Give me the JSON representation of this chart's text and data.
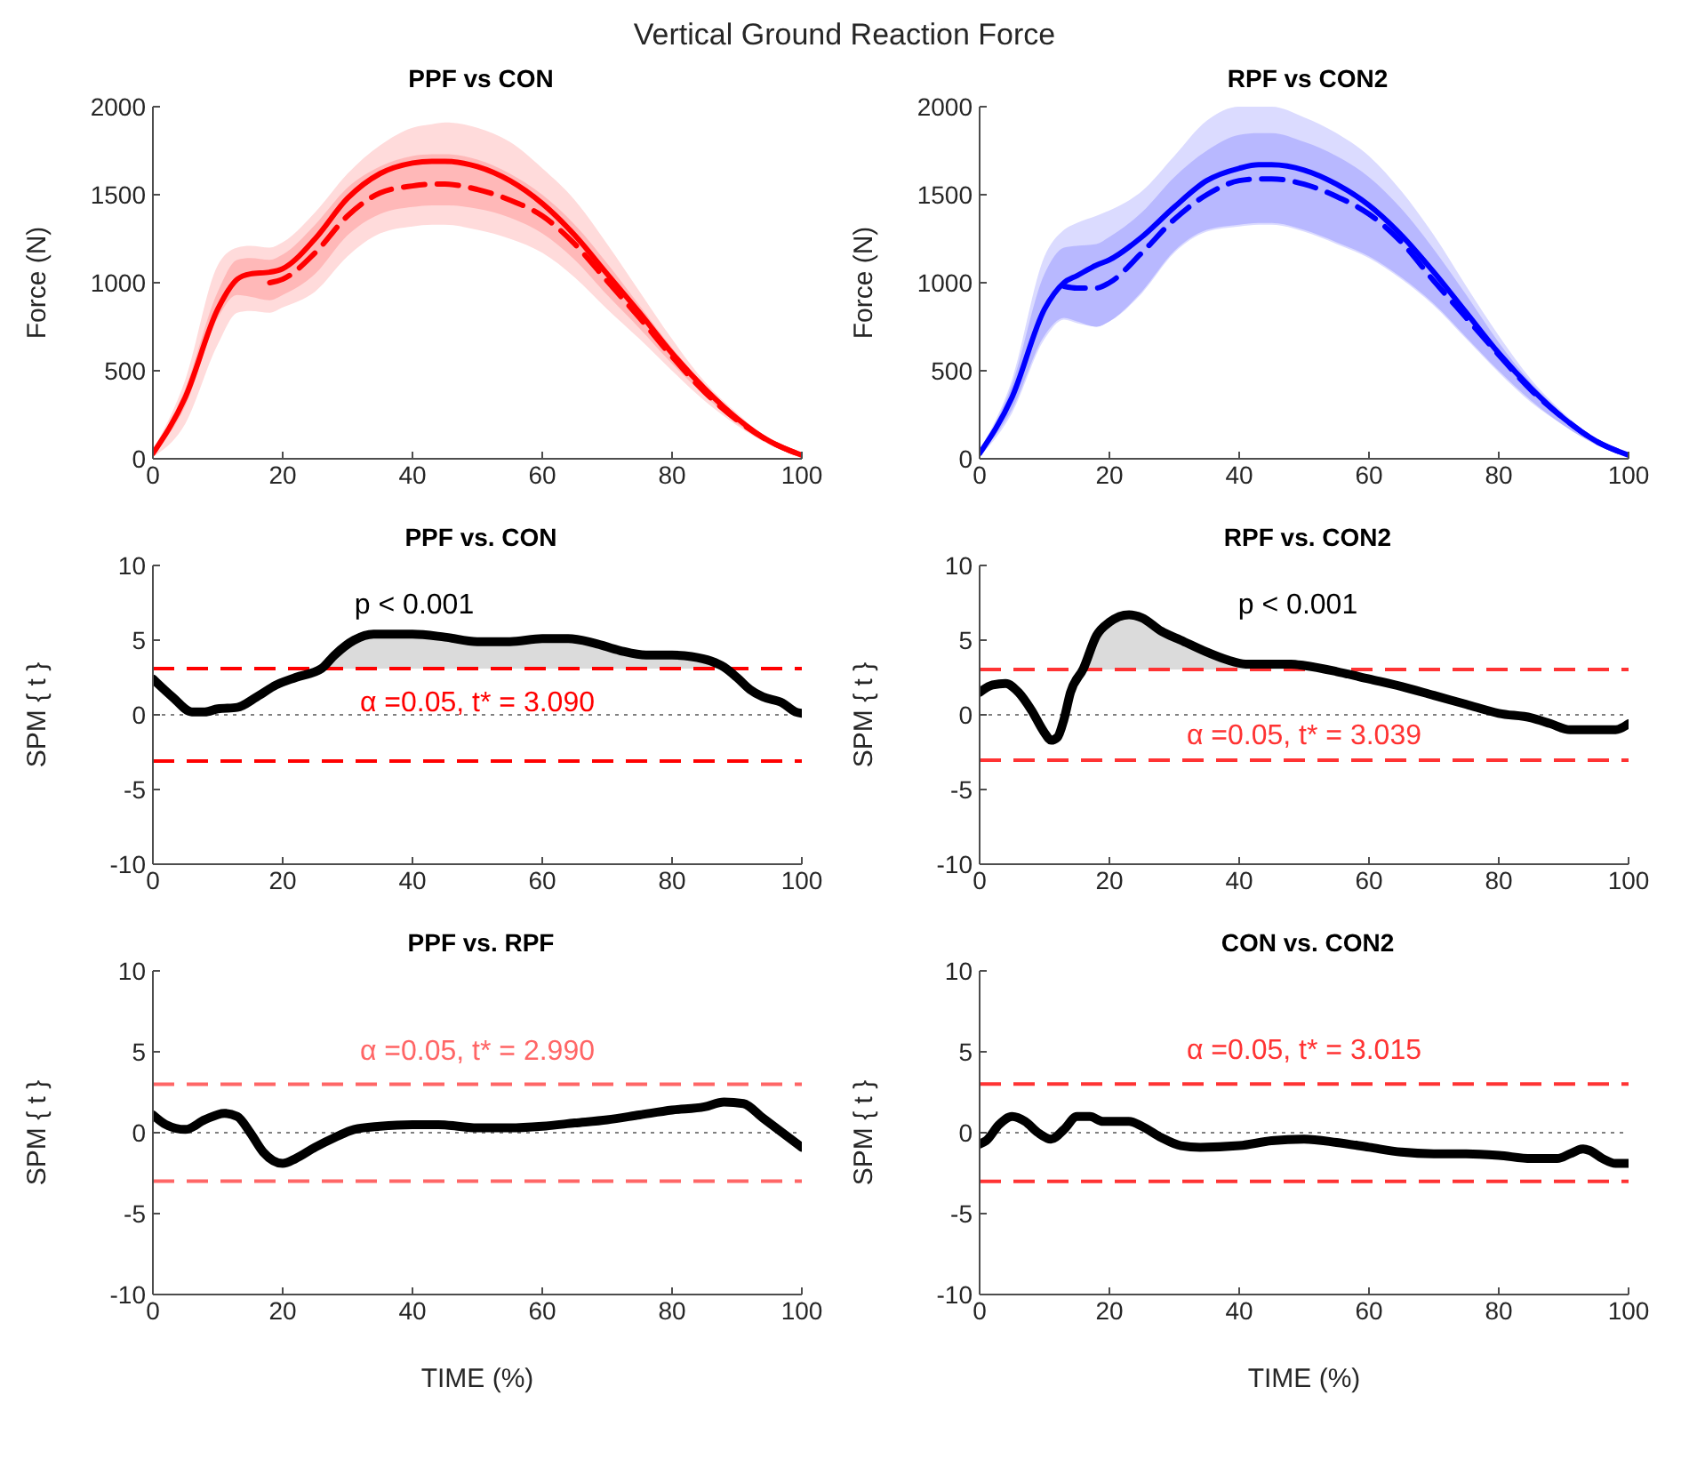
{
  "chart_data": [
    {
      "type": "line",
      "title": "PPF vs CON",
      "ylabel": "Force (N)",
      "annotations": [
        "Vertical Ground Reaction Force"
      ],
      "xlim": [
        0,
        100
      ],
      "xticks": [
        0,
        20,
        40,
        60,
        80,
        100
      ],
      "ylim": [
        0,
        2000
      ],
      "yticks": [
        0,
        500,
        1000,
        1500,
        2000
      ],
      "series": [
        {
          "color": "#ff0000",
          "line_style": "solid",
          "x": [
            0,
            5,
            10,
            13,
            15,
            18,
            20,
            25,
            30,
            35,
            40,
            43,
            45,
            50,
            55,
            60,
            65,
            70,
            75,
            80,
            85,
            90,
            95,
            100
          ],
          "values": [
            30,
            350,
            850,
            1020,
            1050,
            1060,
            1080,
            1250,
            1480,
            1620,
            1680,
            1690,
            1690,
            1660,
            1580,
            1450,
            1270,
            1050,
            830,
            600,
            400,
            230,
            100,
            20
          ],
          "lower": [
            10,
            200,
            650,
            830,
            840,
            830,
            860,
            950,
            1150,
            1280,
            1320,
            1330,
            1330,
            1300,
            1250,
            1170,
            1030,
            850,
            680,
            500,
            330,
            190,
            80,
            10
          ],
          "upper": [
            50,
            450,
            1100,
            1200,
            1210,
            1200,
            1230,
            1400,
            1620,
            1780,
            1880,
            1900,
            1910,
            1880,
            1800,
            1650,
            1470,
            1220,
            950,
            680,
            440,
            260,
            110,
            30
          ]
        },
        {
          "color": "#ff0000",
          "line_style": "dashed",
          "x": [
            0,
            5,
            10,
            13,
            15,
            18,
            20,
            25,
            30,
            35,
            40,
            43,
            45,
            50,
            55,
            60,
            65,
            70,
            75,
            80,
            85,
            90,
            95,
            100
          ],
          "values": [
            null,
            null,
            null,
            null,
            null,
            1000,
            1020,
            1170,
            1380,
            1510,
            1550,
            1560,
            1560,
            1530,
            1470,
            1380,
            1220,
            1010,
            800,
            580,
            380,
            220,
            100,
            20
          ],
          "lower": [
            20,
            300,
            800,
            930,
            920,
            900,
            930,
            1050,
            1270,
            1390,
            1430,
            1440,
            1440,
            1420,
            1370,
            1280,
            1130,
            930,
            740,
            540,
            360,
            200,
            90,
            20
          ],
          "upper": [
            40,
            400,
            950,
            1130,
            1140,
            1130,
            1160,
            1330,
            1540,
            1660,
            1720,
            1730,
            1730,
            1700,
            1620,
            1500,
            1330,
            1110,
            870,
            630,
            420,
            240,
            100,
            20
          ]
        }
      ]
    },
    {
      "type": "line",
      "title": "RPF vs CON2",
      "ylabel": "Force (N)",
      "xlim": [
        0,
        100
      ],
      "xticks": [
        0,
        20,
        40,
        60,
        80,
        100
      ],
      "ylim": [
        0,
        2000
      ],
      "yticks": [
        0,
        500,
        1000,
        1500,
        2000
      ],
      "series": [
        {
          "color": "#0000ff",
          "line_style": "solid",
          "x": [
            0,
            5,
            10,
            13,
            15,
            18,
            20,
            25,
            30,
            35,
            40,
            43,
            45,
            50,
            55,
            60,
            65,
            70,
            75,
            80,
            85,
            90,
            95,
            100
          ],
          "values": [
            30,
            350,
            850,
            1000,
            1040,
            1100,
            1130,
            1260,
            1430,
            1580,
            1650,
            1670,
            1670,
            1640,
            1560,
            1440,
            1270,
            1060,
            830,
            600,
            400,
            230,
            100,
            20
          ],
          "lower": [
            10,
            260,
            680,
            790,
            770,
            750,
            780,
            940,
            1170,
            1290,
            1320,
            1330,
            1330,
            1290,
            1220,
            1140,
            1020,
            870,
            680,
            490,
            320,
            190,
            80,
            10
          ],
          "upper": [
            50,
            450,
            1150,
            1300,
            1340,
            1380,
            1410,
            1520,
            1720,
            1920,
            2000,
            2000,
            2000,
            1940,
            1850,
            1720,
            1520,
            1270,
            980,
            700,
            450,
            260,
            110,
            30
          ]
        },
        {
          "color": "#0000ff",
          "line_style": "dashed",
          "x": [
            0,
            5,
            10,
            13,
            15,
            18,
            20,
            25,
            30,
            35,
            40,
            43,
            45,
            50,
            55,
            60,
            65,
            70,
            75,
            80,
            85,
            90,
            95,
            100
          ],
          "values": [
            null,
            null,
            null,
            980,
            970,
            970,
            1000,
            1170,
            1360,
            1500,
            1580,
            1590,
            1590,
            1560,
            1490,
            1390,
            1230,
            1010,
            800,
            590,
            390,
            230,
            100,
            20
          ],
          "lower": [
            20,
            280,
            700,
            800,
            780,
            750,
            780,
            950,
            1180,
            1300,
            1330,
            1340,
            1340,
            1300,
            1230,
            1150,
            1030,
            880,
            690,
            500,
            330,
            190,
            80,
            10
          ],
          "upper": [
            40,
            420,
            1050,
            1200,
            1210,
            1220,
            1260,
            1400,
            1600,
            1750,
            1840,
            1850,
            1850,
            1800,
            1720,
            1600,
            1420,
            1190,
            930,
            660,
            430,
            250,
            100,
            20
          ]
        }
      ]
    },
    {
      "type": "line",
      "title": "PPF vs. CON",
      "ylabel": "SPM { t }",
      "xlim": [
        0,
        100
      ],
      "xticks": [
        0,
        20,
        40,
        60,
        80,
        100
      ],
      "ylim": [
        -10,
        10
      ],
      "yticks": [
        -10,
        -5,
        0,
        5,
        10
      ],
      "annotations": [
        "p < 0.001"
      ],
      "ref_lines": [
        {
          "axis": "y",
          "value": 3.09,
          "label": "α  =0.05,     t* = 3.090",
          "color": "#ff0000",
          "line_style": "dashed"
        },
        {
          "axis": "y",
          "value": -3.09,
          "color": "#ff0000",
          "line_style": "dashed"
        },
        {
          "axis": "y",
          "value": 0,
          "color": "#808080",
          "line_style": "dotted"
        }
      ],
      "series": [
        {
          "color": "#000000",
          "x": [
            0,
            3,
            6,
            8,
            10,
            13,
            16,
            19,
            22,
            26,
            28,
            31,
            34,
            40,
            45,
            50,
            55,
            60,
            64,
            68,
            72,
            76,
            80,
            83,
            86,
            88,
            90,
            92,
            94,
            97,
            99,
            100
          ],
          "values": [
            2.4,
            1.2,
            0.2,
            0.2,
            0.4,
            0.5,
            1.2,
            2.0,
            2.5,
            3.1,
            4.0,
            5.0,
            5.4,
            5.4,
            5.2,
            4.9,
            4.9,
            5.1,
            5.1,
            4.8,
            4.3,
            4.0,
            4.0,
            3.9,
            3.6,
            3.2,
            2.5,
            1.7,
            1.2,
            0.8,
            0.2,
            0.1
          ],
          "lower": [
            null,
            null,
            null,
            null,
            null,
            null,
            null,
            null,
            null,
            3.09,
            3.09,
            3.09,
            3.09,
            3.09,
            3.09,
            3.09,
            3.09,
            3.09,
            3.09,
            3.09,
            3.09,
            3.09,
            3.09,
            3.09,
            3.09,
            3.09,
            null,
            null,
            null,
            null,
            null,
            null
          ],
          "upper": [
            null,
            null,
            null,
            null,
            null,
            null,
            null,
            null,
            null,
            3.1,
            4.0,
            5.0,
            5.4,
            5.4,
            5.2,
            4.9,
            4.9,
            5.1,
            5.1,
            4.8,
            4.3,
            4.0,
            4.0,
            3.9,
            3.6,
            3.2,
            null,
            null,
            null,
            null,
            null,
            null
          ]
        }
      ]
    },
    {
      "type": "line",
      "title": "RPF vs. CON2",
      "ylabel": "SPM { t }",
      "xlim": [
        0,
        100
      ],
      "xticks": [
        0,
        20,
        40,
        60,
        80,
        100
      ],
      "ylim": [
        -10,
        10
      ],
      "yticks": [
        -10,
        -5,
        0,
        5,
        10
      ],
      "annotations": [
        "p < 0.001"
      ],
      "ref_lines": [
        {
          "axis": "y",
          "value": 3.039,
          "label": "α  =0.05,     t* = 3.039",
          "color": "#ff3333",
          "line_style": "dashed"
        },
        {
          "axis": "y",
          "value": -3.039,
          "color": "#ff3333",
          "line_style": "dashed"
        },
        {
          "axis": "y",
          "value": 0,
          "color": "#808080",
          "line_style": "dotted"
        }
      ],
      "series": [
        {
          "color": "#000000",
          "x": [
            0,
            2,
            4,
            6,
            8,
            10,
            11,
            12,
            13,
            14,
            16,
            18,
            20,
            23,
            25,
            28,
            31,
            35,
            38,
            41,
            45,
            48,
            50,
            55,
            60,
            65,
            70,
            75,
            80,
            85,
            88,
            91,
            95,
            98,
            100
          ],
          "values": [
            1.5,
            2.0,
            2.1,
            1.5,
            0.3,
            -1.2,
            -1.7,
            -1.5,
            -0.3,
            1.5,
            3.1,
            5.3,
            6.2,
            6.7,
            6.5,
            5.6,
            5.0,
            4.2,
            3.7,
            3.4,
            3.4,
            3.4,
            3.3,
            2.9,
            2.4,
            1.9,
            1.3,
            0.7,
            0.1,
            -0.2,
            -0.6,
            -1.0,
            -1.0,
            -1.0,
            -0.6
          ],
          "lower": [
            null,
            null,
            null,
            null,
            null,
            null,
            null,
            null,
            null,
            null,
            3.039,
            3.039,
            3.039,
            3.039,
            3.039,
            3.039,
            3.039,
            3.039,
            3.039,
            3.039,
            3.039,
            3.039,
            3.039,
            null,
            null,
            null,
            null,
            null,
            null,
            null,
            null,
            null,
            null,
            null,
            null
          ],
          "upper": [
            null,
            null,
            null,
            null,
            null,
            null,
            null,
            null,
            null,
            null,
            3.1,
            5.3,
            6.2,
            6.7,
            6.5,
            5.6,
            5.0,
            4.2,
            3.7,
            3.4,
            3.4,
            3.4,
            3.3,
            null,
            null,
            null,
            null,
            null,
            null,
            null,
            null,
            null,
            null,
            null,
            null
          ]
        }
      ]
    },
    {
      "type": "line",
      "title": "PPF vs. RPF",
      "xlabel": "TIME (%)",
      "ylabel": "SPM { t }",
      "xlim": [
        0,
        100
      ],
      "xticks": [
        0,
        20,
        40,
        60,
        80,
        100
      ],
      "ylim": [
        -10,
        10
      ],
      "yticks": [
        -10,
        -5,
        0,
        5,
        10
      ],
      "ref_lines": [
        {
          "axis": "y",
          "value": 2.99,
          "label": "α  =0.05,     t* = 2.990",
          "color": "#ff6666",
          "line_style": "dashed"
        },
        {
          "axis": "y",
          "value": -2.99,
          "color": "#ff6666",
          "line_style": "dashed"
        },
        {
          "axis": "y",
          "value": 0,
          "color": "#808080",
          "line_style": "dotted"
        }
      ],
      "series": [
        {
          "color": "#000000",
          "x": [
            0,
            2,
            5,
            8,
            11,
            13,
            15,
            17,
            20,
            22,
            25,
            28,
            31,
            35,
            40,
            44,
            50,
            55,
            60,
            65,
            70,
            75,
            80,
            85,
            88,
            91,
            94,
            97,
            100
          ],
          "values": [
            1.1,
            0.5,
            0.2,
            0.8,
            1.2,
            1.0,
            0,
            -1.2,
            -1.9,
            -1.6,
            -0.9,
            -0.3,
            0.2,
            0.4,
            0.5,
            0.5,
            0.3,
            0.3,
            0.4,
            0.6,
            0.8,
            1.1,
            1.4,
            1.6,
            1.9,
            1.8,
            0.9,
            0,
            -0.9
          ]
        }
      ]
    },
    {
      "type": "line",
      "title": "CON vs. CON2",
      "xlabel": "TIME (%)",
      "ylabel": "SPM { t }",
      "xlim": [
        0,
        100
      ],
      "xticks": [
        0,
        20,
        40,
        60,
        80,
        100
      ],
      "ylim": [
        -10,
        10
      ],
      "yticks": [
        -10,
        -5,
        0,
        5,
        10
      ],
      "ref_lines": [
        {
          "axis": "y",
          "value": 3.015,
          "label": "α  =0.05,     t* = 3.015",
          "color": "#ff3333",
          "line_style": "dashed"
        },
        {
          "axis": "y",
          "value": -3.015,
          "color": "#ff3333",
          "line_style": "dashed"
        },
        {
          "axis": "y",
          "value": 0,
          "color": "#808080",
          "line_style": "dotted"
        }
      ],
      "series": [
        {
          "color": "#000000",
          "x": [
            0,
            1,
            3,
            5,
            7,
            9,
            11,
            13,
            15,
            17,
            19,
            21,
            23,
            25,
            28,
            31,
            34,
            40,
            45,
            50,
            55,
            60,
            65,
            70,
            75,
            80,
            85,
            89,
            91,
            93,
            94,
            96,
            98,
            100
          ],
          "values": [
            -0.7,
            -0.5,
            0.5,
            1.0,
            0.7,
            0,
            -0.4,
            0.2,
            1.0,
            1.0,
            0.7,
            0.7,
            0.7,
            0.4,
            -0.3,
            -0.8,
            -0.9,
            -0.8,
            -0.5,
            -0.4,
            -0.6,
            -0.9,
            -1.2,
            -1.3,
            -1.3,
            -1.4,
            -1.6,
            -1.6,
            -1.3,
            -1.0,
            -1.1,
            -1.6,
            -1.9,
            -1.9
          ]
        }
      ]
    }
  ]
}
